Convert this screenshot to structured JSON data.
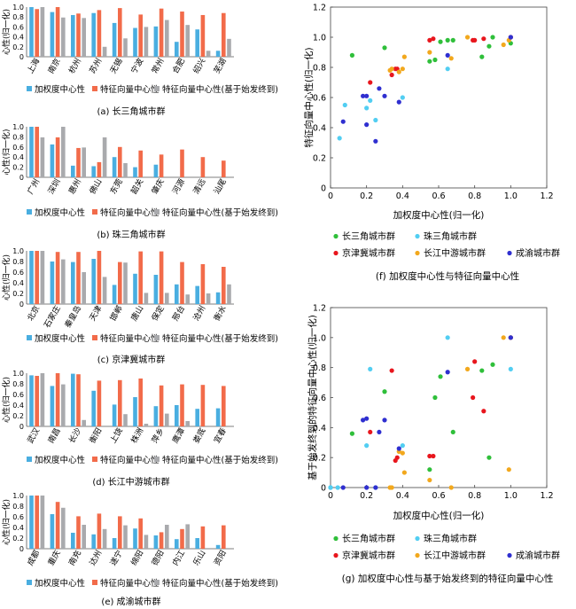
{
  "colors": {
    "weighted": "#4aaee0",
    "eigen": "#f26b4a",
    "eigen_based": "#a9aaad"
  },
  "bar_legend": [
    "加权度中心性",
    "特征向量中心性",
    "特征向量中心性(基于始发终到)"
  ],
  "scatter_legend_groups": [
    {
      "name": "长三角城市群",
      "color": "#2fbf3a"
    },
    {
      "name": "珠三角城市群",
      "color": "#52cef2"
    },
    {
      "name": "京津冀城市群",
      "color": "#e8161d"
    },
    {
      "name": "长江中游城市群",
      "color": "#f2a81d"
    },
    {
      "name": "成渝城市群",
      "color": "#2f2fd0"
    }
  ],
  "chart_data": [
    {
      "id": "a",
      "type": "bar",
      "caption": "(a) 长三角城市群",
      "ylabel": "心性(归一化)",
      "ylim": [
        0,
        1.0
      ],
      "yticks": [
        "0",
        "0.2",
        "0.4",
        "0.6",
        "0.8",
        "1.0"
      ],
      "categories": [
        "上海",
        "南京",
        "杭州",
        "苏州",
        "无锡",
        "宁波",
        "常州",
        "合肥",
        "绍兴",
        "芜湖"
      ],
      "series": [
        {
          "name": "加权度中心性",
          "values": [
            1.0,
            0.9,
            0.84,
            0.88,
            0.68,
            0.58,
            0.61,
            0.3,
            0.55,
            0.12
          ]
        },
        {
          "name": "特征向量中心性",
          "values": [
            0.96,
            1.0,
            0.87,
            0.94,
            0.98,
            0.85,
            0.97,
            0.91,
            0.84,
            0.88
          ]
        },
        {
          "name": "特征向量中心性(基于始发终到)",
          "values": [
            1.0,
            0.79,
            0.78,
            0.2,
            0.37,
            0.6,
            0.74,
            0.64,
            0.12,
            0.36
          ]
        }
      ]
    },
    {
      "id": "b",
      "type": "bar",
      "caption": "(b) 珠三角城市群",
      "ylabel": "心性(归一化)",
      "ylim": [
        0,
        1.0
      ],
      "yticks": [
        "0",
        "0.2",
        "0.4",
        "0.6",
        "0.8",
        "1.0"
      ],
      "categories": [
        "广州",
        "深圳",
        "惠州",
        "佛山",
        "东莞",
        "韶关",
        "肇庆",
        "河源",
        "清远",
        "汕尾"
      ],
      "series": [
        {
          "name": "加权度中心性",
          "values": [
            1.0,
            0.65,
            0.23,
            0.22,
            0.4,
            0.2,
            0.25,
            0.0,
            0.0,
            0.0
          ]
        },
        {
          "name": "特征向量中心性",
          "values": [
            1.0,
            0.79,
            0.58,
            0.3,
            0.6,
            0.53,
            0.45,
            0.55,
            0.4,
            0.33
          ]
        },
        {
          "name": "特征向量中心性(基于始发终到)",
          "values": [
            0.79,
            1.0,
            0.59,
            0.79,
            0.28,
            0.0,
            0.0,
            0.0,
            0.0,
            0.0
          ]
        }
      ]
    },
    {
      "id": "c",
      "type": "bar",
      "caption": "(c) 京津冀城市群",
      "ylabel": "心性(归一化)",
      "ylim": [
        0,
        1.0
      ],
      "yticks": [
        "0",
        "0.2",
        "0.4",
        "0.6",
        "0.8",
        "1.0"
      ],
      "categories": [
        "北京",
        "石家庄",
        "秦皇岛",
        "天津",
        "邯郸",
        "唐山",
        "保定",
        "邢台",
        "沧州",
        "衡水"
      ],
      "series": [
        {
          "name": "加权度中心性",
          "values": [
            1.0,
            0.8,
            0.79,
            0.85,
            0.36,
            0.57,
            0.55,
            0.37,
            0.34,
            0.22
          ]
        },
        {
          "name": "特征向量中心性",
          "values": [
            1.0,
            0.98,
            0.98,
            1.0,
            0.79,
            0.99,
            0.99,
            0.79,
            0.75,
            0.7
          ]
        },
        {
          "name": "特征向量中心性(基于始发终到)",
          "values": [
            1.0,
            0.84,
            0.6,
            0.51,
            0.78,
            0.21,
            0.21,
            0.18,
            0.2,
            0.37
          ]
        }
      ]
    },
    {
      "id": "d",
      "type": "bar",
      "caption": "(d) 长江中游城市群",
      "ylabel": "心性(归一化)",
      "ylim": [
        0,
        1.0
      ],
      "yticks": [
        "0",
        "0.2",
        "0.4",
        "0.6",
        "0.8",
        "1.0"
      ],
      "categories": [
        "武汉",
        "南昌",
        "长沙",
        "衡阳",
        "上饶",
        "株洲",
        "萍乡",
        "鹰潭",
        "娄底",
        "宜春"
      ],
      "series": [
        {
          "name": "加权度中心性",
          "values": [
            0.96,
            0.76,
            0.99,
            0.67,
            0.41,
            0.55,
            0.38,
            0.4,
            0.33,
            0.34
          ]
        },
        {
          "name": "特征向量中心性",
          "values": [
            0.95,
            1.0,
            0.98,
            0.86,
            0.87,
            0.9,
            0.77,
            0.79,
            0.78,
            0.76
          ]
        },
        {
          "name": "特征向量中心性(基于始发终到)",
          "values": [
            1.0,
            0.79,
            0.12,
            0.0,
            0.23,
            0.05,
            0.24,
            0.1,
            0.0,
            0.0
          ]
        }
      ]
    },
    {
      "id": "e",
      "type": "bar",
      "caption": "(e) 成渝城市群",
      "ylabel": "心性(归一化)",
      "ylim": [
        0,
        1.0
      ],
      "yticks": [
        "0",
        "0.2",
        "0.4",
        "0.6",
        "0.8",
        "1.0"
      ],
      "categories": [
        "成都",
        "重庆",
        "南充",
        "达州",
        "遂宁",
        "绵阳",
        "德阳",
        "内江",
        "乐山",
        "资阳"
      ],
      "series": [
        {
          "name": "加权度中心性",
          "values": [
            1.0,
            0.65,
            0.3,
            0.27,
            0.2,
            0.38,
            0.25,
            0.18,
            0.2,
            0.07
          ]
        },
        {
          "name": "特征向量中心性",
          "values": [
            1.0,
            0.88,
            0.61,
            0.66,
            0.61,
            0.57,
            0.31,
            0.37,
            0.42,
            0.44
          ]
        },
        {
          "name": "特征向量中心性(基于始发终到)",
          "values": [
            1.0,
            0.77,
            0.45,
            0.37,
            0.44,
            0.26,
            0.45,
            0.46,
            0.0,
            0.0
          ]
        }
      ]
    },
    {
      "id": "f",
      "type": "scatter",
      "caption": "(f) 加权度中心性与特征向量中心性",
      "xlabel": "加权度中心性(归一化)",
      "ylabel": "特征向量中心性(归一化)",
      "xlim": [
        0,
        1.2
      ],
      "ylim": [
        0,
        1.2
      ],
      "xticks": [
        "0",
        "0.2",
        "0.4",
        "0.6",
        "0.8",
        "1.0",
        "1.2"
      ],
      "yticks": [
        "0",
        "0.2",
        "0.4",
        "0.6",
        "0.8",
        "1.0",
        "1.2"
      ],
      "series": [
        {
          "name": "长三角城市群",
          "points": [
            [
              0.12,
              0.88
            ],
            [
              0.3,
              0.93
            ],
            [
              0.55,
              0.84
            ],
            [
              0.58,
              0.85
            ],
            [
              0.61,
              0.97
            ],
            [
              0.65,
              0.98
            ],
            [
              0.68,
              0.98
            ],
            [
              0.84,
              0.87
            ],
            [
              0.88,
              0.94
            ],
            [
              0.9,
              1.0
            ],
            [
              1.0,
              0.96
            ]
          ]
        },
        {
          "name": "珠三角城市群",
          "points": [
            [
              0.05,
              0.33
            ],
            [
              0.08,
              0.55
            ],
            [
              0.2,
              0.53
            ],
            [
              0.22,
              0.58
            ],
            [
              0.25,
              0.45
            ],
            [
              0.4,
              0.6
            ],
            [
              0.65,
              0.79
            ],
            [
              1.0,
              1.0
            ]
          ]
        },
        {
          "name": "京津冀城市群",
          "points": [
            [
              0.22,
              0.7
            ],
            [
              0.34,
              0.75
            ],
            [
              0.36,
              0.79
            ],
            [
              0.37,
              0.79
            ],
            [
              0.55,
              0.98
            ],
            [
              0.57,
              0.99
            ],
            [
              0.79,
              0.98
            ],
            [
              0.8,
              0.98
            ],
            [
              0.85,
              0.99
            ],
            [
              1.0,
              1.0
            ]
          ]
        },
        {
          "name": "长江中游城市群",
          "points": [
            [
              0.33,
              0.78
            ],
            [
              0.34,
              0.79
            ],
            [
              0.38,
              0.77
            ],
            [
              0.4,
              0.79
            ],
            [
              0.41,
              0.87
            ],
            [
              0.55,
              0.9
            ],
            [
              0.67,
              0.86
            ],
            [
              0.76,
              1.0
            ],
            [
              0.96,
              0.95
            ],
            [
              0.99,
              0.98
            ]
          ]
        },
        {
          "name": "成渝城市群",
          "points": [
            [
              0.07,
              0.44
            ],
            [
              0.18,
              0.61
            ],
            [
              0.2,
              0.42
            ],
            [
              0.2,
              0.61
            ],
            [
              0.25,
              0.31
            ],
            [
              0.27,
              0.66
            ],
            [
              0.3,
              0.61
            ],
            [
              0.38,
              0.57
            ],
            [
              0.65,
              0.88
            ],
            [
              1.0,
              1.0
            ]
          ]
        }
      ]
    },
    {
      "id": "g",
      "type": "scatter",
      "caption": "(g) 加权度中心性与基于始发终到的特征向量中心性",
      "xlabel": "加权度中心性(归一化)",
      "ylabel": "基于始发终到的特征向量中心性(归一化)",
      "xlim": [
        0,
        1.2
      ],
      "ylim": [
        0,
        1.2
      ],
      "xticks": [
        "0",
        "0.2",
        "0.4",
        "0.6",
        "0.8",
        "1.0",
        "1.2"
      ],
      "yticks": [
        "0",
        "0.2",
        "0.4",
        "0.6",
        "0.8",
        "1.0",
        "1.2"
      ],
      "series": [
        {
          "name": "长三角城市群",
          "points": [
            [
              0.12,
              0.36
            ],
            [
              0.3,
              0.64
            ],
            [
              0.55,
              0.12
            ],
            [
              0.58,
              0.6
            ],
            [
              0.61,
              0.74
            ],
            [
              0.68,
              0.37
            ],
            [
              0.84,
              0.78
            ],
            [
              0.88,
              0.2
            ],
            [
              0.9,
              0.82
            ],
            [
              1.0,
              1.0
            ]
          ]
        },
        {
          "name": "珠三角城市群",
          "points": [
            [
              0.0,
              0.0
            ],
            [
              0.0,
              0.0
            ],
            [
              0.0,
              0.0
            ],
            [
              0.04,
              0.0
            ],
            [
              0.2,
              0.28
            ],
            [
              0.22,
              0.79
            ],
            [
              0.25,
              0.0
            ],
            [
              0.4,
              0.28
            ],
            [
              0.65,
              1.0
            ],
            [
              1.0,
              0.79
            ]
          ]
        },
        {
          "name": "京津冀城市群",
          "points": [
            [
              0.22,
              0.37
            ],
            [
              0.34,
              0.78
            ],
            [
              0.36,
              0.18
            ],
            [
              0.37,
              0.2
            ],
            [
              0.55,
              0.21
            ],
            [
              0.57,
              0.21
            ],
            [
              0.79,
              0.6
            ],
            [
              0.8,
              0.84
            ],
            [
              0.85,
              0.51
            ],
            [
              1.0,
              1.0
            ]
          ]
        },
        {
          "name": "长江中游城市群",
          "points": [
            [
              0.33,
              0.0
            ],
            [
              0.34,
              0.0
            ],
            [
              0.38,
              0.24
            ],
            [
              0.4,
              0.23
            ],
            [
              0.41,
              0.1
            ],
            [
              0.55,
              0.05
            ],
            [
              0.67,
              0.0
            ],
            [
              0.76,
              0.79
            ],
            [
              0.96,
              1.0
            ],
            [
              0.99,
              0.12
            ]
          ]
        },
        {
          "name": "成渝城市群",
          "points": [
            [
              0.07,
              0.0
            ],
            [
              0.18,
              0.45
            ],
            [
              0.2,
              0.46
            ],
            [
              0.2,
              0.0
            ],
            [
              0.25,
              0.0
            ],
            [
              0.27,
              0.37
            ],
            [
              0.3,
              0.45
            ],
            [
              0.38,
              0.26
            ],
            [
              0.65,
              0.77
            ],
            [
              1.0,
              1.0
            ]
          ]
        }
      ]
    }
  ]
}
